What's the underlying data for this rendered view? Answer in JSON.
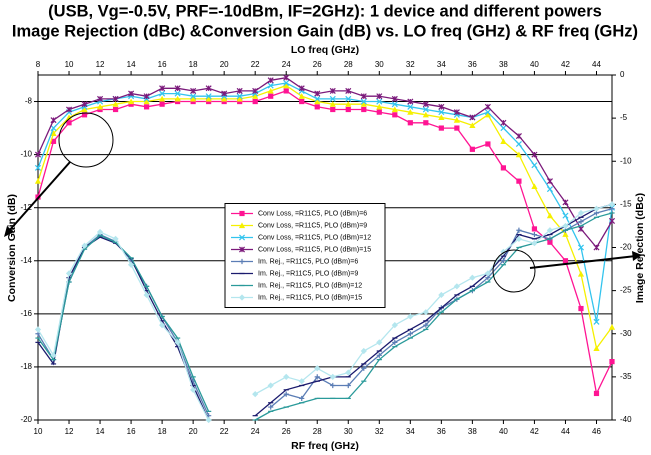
{
  "chart_data": {
    "type": "line",
    "title": "(USB, Vg=-0.5V, PRF=-10dBm, IF=2GHz): 1 device and different powers",
    "subtitle": "Image Rejection (dBc) &Conversion Gain (dB)  vs. LO freq (GHz) & RF freq (GHz)",
    "xlabel": "RF freq (GHz)",
    "x2label": "LO freq (GHz)",
    "ylabel": "Conversion Gain (dB)",
    "y2label": "Image Rejection (dBc)",
    "xlim": [
      10,
      47
    ],
    "xticks": [
      10,
      12,
      14,
      16,
      18,
      20,
      22,
      24,
      26,
      28,
      30,
      32,
      34,
      36,
      38,
      40,
      42,
      44,
      46
    ],
    "x2lim": [
      8,
      45
    ],
    "x2ticks": [
      8,
      10,
      12,
      14,
      16,
      18,
      20,
      22,
      24,
      26,
      28,
      30,
      32,
      34,
      36,
      38,
      40,
      42,
      44
    ],
    "ylim": [
      -20,
      -7
    ],
    "yticks": [
      -20,
      -18,
      -16,
      -14,
      -12,
      -10,
      -8
    ],
    "y2lim": [
      -40,
      0
    ],
    "y2ticks": [
      -40,
      -35,
      -30,
      -25,
      -20,
      -15,
      -10,
      -5,
      0
    ],
    "grid": true,
    "legend": "center",
    "x": [
      10,
      11,
      12,
      13,
      14,
      15,
      16,
      17,
      18,
      19,
      20,
      21,
      22,
      23,
      24,
      25,
      26,
      27,
      28,
      29,
      30,
      31,
      32,
      33,
      34,
      35,
      36,
      37,
      38,
      39,
      40,
      41,
      42,
      43,
      44,
      45,
      46,
      47
    ],
    "series": [
      {
        "name": "Conv Loss, =R11C5, PLO (dBm)=6",
        "color": "#ff1493",
        "marker": "square",
        "values": [
          -11.6,
          -9.5,
          -8.8,
          -8.5,
          -8.3,
          -8.3,
          -8.1,
          -8.2,
          -8.1,
          -8.0,
          -8.0,
          -8.0,
          -8.0,
          -8.0,
          -8.0,
          -7.8,
          -7.6,
          -8.0,
          -8.2,
          -8.3,
          -8.3,
          -8.3,
          -8.4,
          -8.5,
          -8.8,
          -8.8,
          -9.0,
          -9.0,
          -9.8,
          -9.6,
          -10.5,
          -11.0,
          -12.8,
          -13.3,
          -14.0,
          -15.8,
          -19.0,
          -17.8
        ]
      },
      {
        "name": "Conv Loss, =R11C5, PLO (dBm)=9",
        "color": "#f5f000",
        "marker": "triangle",
        "values": [
          -11.0,
          -9.2,
          -8.6,
          -8.3,
          -8.2,
          -8.1,
          -8.0,
          -8.0,
          -7.9,
          -7.9,
          -7.9,
          -7.9,
          -7.9,
          -7.9,
          -7.8,
          -7.6,
          -7.4,
          -7.8,
          -8.0,
          -8.1,
          -8.1,
          -8.1,
          -8.2,
          -8.3,
          -8.4,
          -8.5,
          -8.6,
          -8.7,
          -8.9,
          -8.5,
          -9.5,
          -10.0,
          -11.2,
          -12.3,
          -13.0,
          -14.5,
          -17.3,
          -16.5
        ]
      },
      {
        "name": "Conv Loss, =R11C5, PLO (dBm)=12",
        "color": "#33c4ee",
        "marker": "x",
        "values": [
          -10.5,
          -9.0,
          -8.4,
          -8.2,
          -8.0,
          -7.9,
          -7.8,
          -7.9,
          -7.7,
          -7.7,
          -7.8,
          -7.8,
          -7.8,
          -7.8,
          -7.7,
          -7.4,
          -7.3,
          -7.6,
          -7.9,
          -7.9,
          -7.9,
          -8.0,
          -8.0,
          -8.1,
          -8.2,
          -8.3,
          -8.4,
          -8.5,
          -8.6,
          -8.4,
          -9.0,
          -9.6,
          -10.4,
          -11.3,
          -12.3,
          -13.5,
          -16.3,
          -12.0
        ]
      },
      {
        "name": "Conv Loss, =R11C5, PLO (dBm)=15",
        "color": "#7b1a7b",
        "marker": "star",
        "values": [
          -10.0,
          -8.7,
          -8.3,
          -8.1,
          -7.9,
          -7.9,
          -7.7,
          -7.8,
          -7.5,
          -7.5,
          -7.6,
          -7.5,
          -7.7,
          -7.6,
          -7.6,
          -7.2,
          -7.1,
          -7.5,
          -7.7,
          -7.6,
          -7.6,
          -7.8,
          -7.8,
          -7.9,
          -8.0,
          -8.1,
          -8.2,
          -8.4,
          -8.6,
          -8.2,
          -8.8,
          -9.3,
          -10.0,
          -11.0,
          -11.8,
          -12.8,
          -13.5,
          -12.5
        ]
      },
      {
        "name": "Im. Rej., =R11C5, PLO (dBm)=6",
        "color": "#5b7db5",
        "marker": "plus",
        "axis": "y2",
        "values": [
          -30,
          -33,
          -24,
          -20,
          -18.5,
          -19.3,
          -21.5,
          -24.5,
          -28,
          -31,
          -35.5,
          -39.5,
          null,
          null,
          null,
          -38.5,
          -37,
          -37.5,
          -35,
          -36,
          -36,
          -34,
          -32.5,
          -31,
          -30,
          -29,
          -27,
          -26,
          -25,
          -23.5,
          -21.5,
          -18,
          -18.5,
          -19,
          -18,
          -17,
          -16,
          -15.5
        ]
      },
      {
        "name": "Im. Rej., =R11C5, PLO (dBm)=9",
        "color": "#1b1b6e",
        "marker": "dash",
        "axis": "y2",
        "values": [
          -31,
          -33.5,
          -23.5,
          -20,
          -18.8,
          -19.5,
          -21.3,
          -25,
          -28.5,
          -31.5,
          -36,
          -40,
          null,
          null,
          -39.5,
          -38,
          -36.5,
          -36,
          -35.5,
          -35,
          -35,
          -33.5,
          -32,
          -30.5,
          -29.5,
          -28.5,
          -27,
          -25.5,
          -24.5,
          -23,
          -21,
          -18.5,
          -19,
          -18.5,
          -17.5,
          -16.5,
          -15.5,
          -15
        ]
      },
      {
        "name": "Im. Rej., =R11C5, PLO (dBm)=12",
        "color": "#2a9a9a",
        "marker": "dash",
        "axis": "y2",
        "values": [
          -30.5,
          -33,
          -24,
          -20.2,
          -18.6,
          -19.4,
          -21.2,
          -24.5,
          -28,
          -30.5,
          -35,
          -39,
          null,
          null,
          -40,
          -39,
          -38.5,
          -38,
          -37.5,
          -37.5,
          -37.5,
          -35.5,
          -33,
          -31.5,
          -30.5,
          -29.5,
          -27.5,
          -26,
          -25,
          -24,
          -22,
          -20,
          -19.5,
          -19,
          -18,
          -17.5,
          -16.5,
          -16
        ]
      },
      {
        "name": "Im. Rej., =R11C5, PLO (dBm)=15",
        "color": "#b4e6ee",
        "marker": "diamond",
        "axis": "y2",
        "values": [
          -29.5,
          -32.5,
          -23,
          -19.8,
          -18.2,
          -19,
          -22,
          -25.5,
          -29,
          -31,
          -36.5,
          -40,
          null,
          null,
          -37,
          -36,
          -35,
          -35.5,
          -34,
          -35,
          -34.5,
          -32,
          -31,
          -29,
          -28,
          -27.5,
          -25.5,
          -24.5,
          -23.5,
          -23,
          -20.5,
          -19,
          -19.5,
          -18,
          -17.5,
          -16,
          -15.5,
          -15
        ]
      }
    ]
  }
}
